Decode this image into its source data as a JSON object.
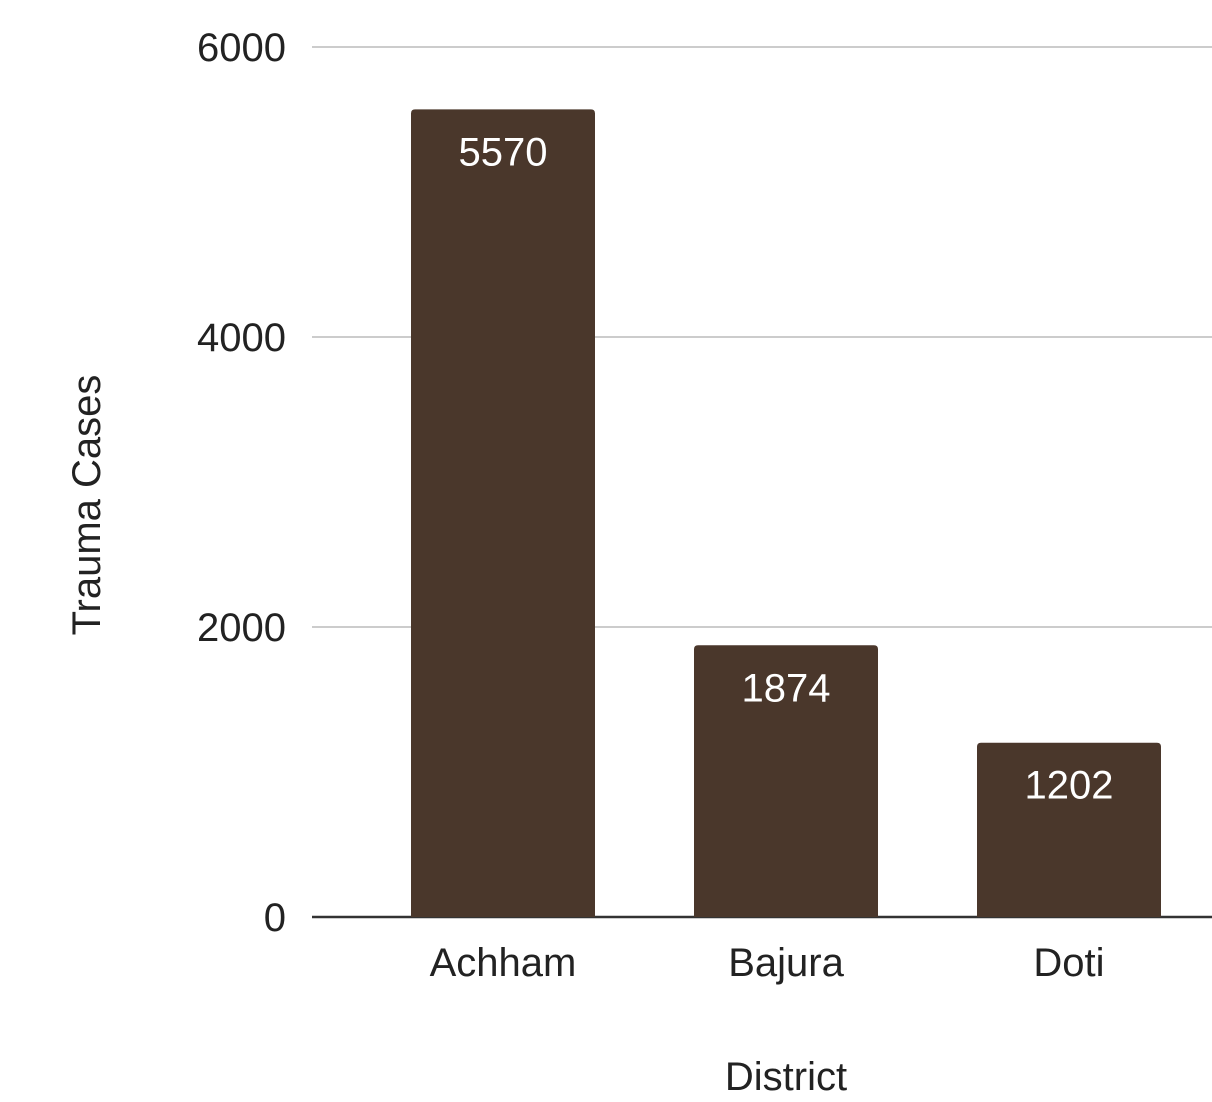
{
  "chart_data": {
    "type": "bar",
    "categories": [
      "Achham",
      "Bajura",
      "Doti"
    ],
    "values": [
      5570,
      1874,
      1202
    ],
    "data_labels": [
      "5570",
      "1874",
      "1202"
    ],
    "xlabel": "District",
    "ylabel": "Trauma Cases",
    "ylim": [
      0,
      6000
    ],
    "yticks": [
      0,
      2000,
      4000,
      6000
    ],
    "ytick_labels": [
      "0",
      "2000",
      "4000",
      "6000"
    ],
    "grid": true,
    "legend": "none",
    "colors": {
      "bar": "#4a372b",
      "grid": "#cccccc",
      "baseline": "#333333"
    }
  }
}
